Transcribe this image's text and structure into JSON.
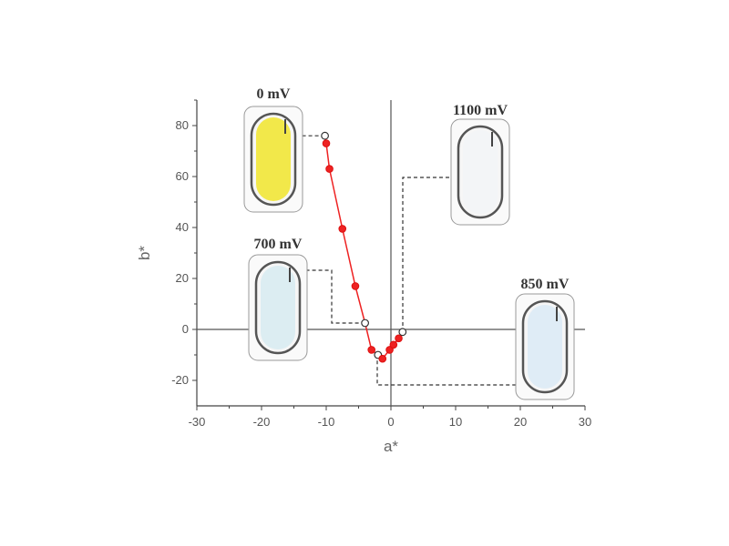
{
  "chart_data": {
    "type": "scatter",
    "xlabel": "a*",
    "ylabel": "b*",
    "xlim": [
      -30,
      30
    ],
    "ylim": [
      -30,
      90
    ],
    "xticks": [
      -30,
      -20,
      -10,
      0,
      10,
      20,
      30
    ],
    "yticks": [
      -20,
      0,
      20,
      40,
      60,
      80
    ],
    "grid": false,
    "series": [
      {
        "color": "#ee2222",
        "points": [
          {
            "x": -10.2,
            "y": 76
          },
          {
            "x": -10.0,
            "y": 73
          },
          {
            "x": -9.5,
            "y": 63
          },
          {
            "x": -7.5,
            "y": 39.5
          },
          {
            "x": -5.5,
            "y": 17
          },
          {
            "x": -4.0,
            "y": 2.5
          },
          {
            "x": -3.0,
            "y": -8
          },
          {
            "x": -2.0,
            "y": -10
          },
          {
            "x": -1.3,
            "y": -11.5
          },
          {
            "x": -0.2,
            "y": -8
          },
          {
            "x": 0.4,
            "y": -6
          },
          {
            "x": 1.2,
            "y": -3.5
          },
          {
            "x": 1.8,
            "y": -1
          }
        ],
        "open_markers_at_index": [
          0,
          5,
          7,
          12
        ]
      }
    ],
    "annotations": [
      {
        "label": "0 mV",
        "vial_color": "#f2e84a",
        "point_index": 0
      },
      {
        "label": "700 mV",
        "vial_color": "#dcedf2",
        "point_index": 5
      },
      {
        "label": "850 mV",
        "vial_color": "#dfecf6",
        "point_index": 7
      },
      {
        "label": "1100 mV",
        "vial_color": "#f3f5f7",
        "point_index": 12
      }
    ]
  }
}
